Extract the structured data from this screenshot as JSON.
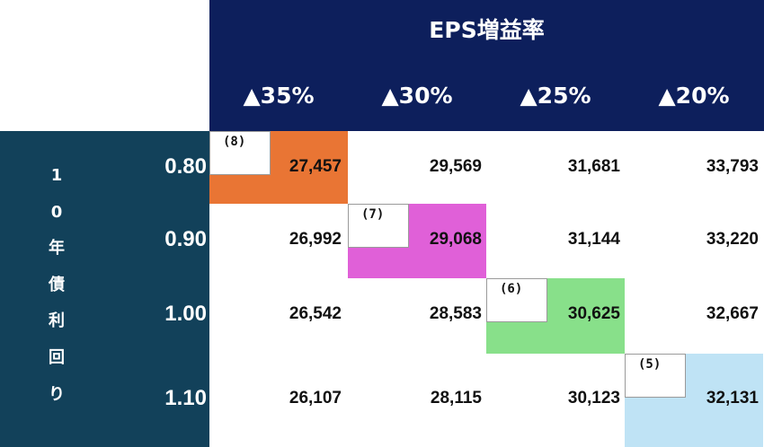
{
  "chart_data": {
    "type": "table",
    "title": "EPS増益率",
    "column_headers": [
      "▲35%",
      "▲30%",
      "▲25%",
      "▲20%"
    ],
    "row_axis_label": "10年債利回り",
    "row_axis_chars": [
      "1",
      "0",
      "年",
      "債",
      "利",
      "回",
      "り"
    ],
    "row_headers": [
      "0.80",
      "0.90",
      "1.00",
      "1.10"
    ],
    "values": [
      [
        "27,457",
        "29,569",
        "31,681",
        "33,793"
      ],
      [
        "26,992",
        "29,068",
        "31,144",
        "33,220"
      ],
      [
        "26,542",
        "28,583",
        "30,625",
        "32,667"
      ],
      [
        "26,107",
        "28,115",
        "30,123",
        "32,131"
      ]
    ],
    "highlights": [
      {
        "tag": "(8)",
        "row": 0,
        "col": 0,
        "color": "#e97534"
      },
      {
        "tag": "(7)",
        "row": 1,
        "col": 1,
        "color": "#e060d8"
      },
      {
        "tag": "(6)",
        "row": 2,
        "col": 2,
        "color": "#88e08a"
      },
      {
        "tag": "(5)",
        "row": 3,
        "col": 3,
        "color": "#bfe3f5"
      }
    ]
  },
  "colors": {
    "header_bg": "#0d1f5c",
    "left_panel_bg": "#12415a"
  }
}
